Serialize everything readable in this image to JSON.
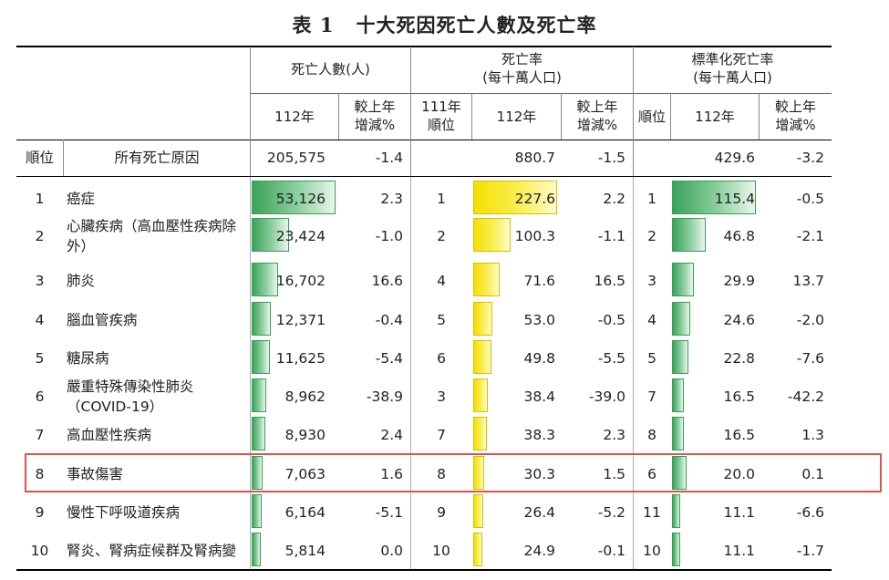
{
  "title": {
    "label": "表 1",
    "text": "十大死因死亡人數及死亡率"
  },
  "headers": {
    "deaths_group": "死亡人數(人)",
    "rate_group_line1": "死亡率",
    "rate_group_line2": "(每十萬人口)",
    "std_group_line1": "標準化死亡率",
    "std_group_line2": "(每十萬人口)",
    "year": "112年",
    "change_line1": "較上年",
    "change_line2": "增減%",
    "prev_rank_line1": "111年",
    "prev_rank_line2": "順位",
    "rank": "順位"
  },
  "total_row": {
    "rank_label": "順位",
    "cause": "所有死亡原因",
    "deaths": "205,575",
    "deaths_change": "-1.4",
    "rate": "880.7",
    "rate_change": "-1.5",
    "std_rate": "429.6",
    "std_change": "-3.2"
  },
  "rows": [
    {
      "rank": "1",
      "cause": "癌症",
      "deaths": "53,126",
      "deaths_change": "2.3",
      "prev_rank": "1",
      "rate": "227.6",
      "rate_change": "2.2",
      "std_rank": "1",
      "std_rate": "115.4",
      "std_change": "-0.5",
      "deaths_value": 53126,
      "rate_value": 227.6,
      "std_value": 115.4
    },
    {
      "rank": "2",
      "cause": "心臟疾病（高血壓性疾病除外）",
      "deaths": "23,424",
      "deaths_change": "-1.0",
      "prev_rank": "2",
      "rate": "100.3",
      "rate_change": "-1.1",
      "std_rank": "2",
      "std_rate": "46.8",
      "std_change": "-2.1",
      "deaths_value": 23424,
      "rate_value": 100.3,
      "std_value": 46.8
    },
    {
      "rank": "3",
      "cause": "肺炎",
      "deaths": "16,702",
      "deaths_change": "16.6",
      "prev_rank": "4",
      "rate": "71.6",
      "rate_change": "16.5",
      "std_rank": "3",
      "std_rate": "29.9",
      "std_change": "13.7",
      "deaths_value": 16702,
      "rate_value": 71.6,
      "std_value": 29.9
    },
    {
      "rank": "4",
      "cause": "腦血管疾病",
      "deaths": "12,371",
      "deaths_change": "-0.4",
      "prev_rank": "5",
      "rate": "53.0",
      "rate_change": "-0.5",
      "std_rank": "4",
      "std_rate": "24.6",
      "std_change": "-2.0",
      "deaths_value": 12371,
      "rate_value": 53.0,
      "std_value": 24.6
    },
    {
      "rank": "5",
      "cause": "糖尿病",
      "deaths": "11,625",
      "deaths_change": "-5.4",
      "prev_rank": "6",
      "rate": "49.8",
      "rate_change": "-5.5",
      "std_rank": "5",
      "std_rate": "22.8",
      "std_change": "-7.6",
      "deaths_value": 11625,
      "rate_value": 49.8,
      "std_value": 22.8
    },
    {
      "rank": "6",
      "cause": "嚴重特殊傳染性肺炎（COVID-19）",
      "deaths": "8,962",
      "deaths_change": "-38.9",
      "prev_rank": "3",
      "rate": "38.4",
      "rate_change": "-39.0",
      "std_rank": "7",
      "std_rate": "16.5",
      "std_change": "-42.2",
      "deaths_value": 8962,
      "rate_value": 38.4,
      "std_value": 16.5
    },
    {
      "rank": "7",
      "cause": "高血壓性疾病",
      "deaths": "8,930",
      "deaths_change": "2.4",
      "prev_rank": "7",
      "rate": "38.3",
      "rate_change": "2.3",
      "std_rank": "8",
      "std_rate": "16.5",
      "std_change": "1.3",
      "deaths_value": 8930,
      "rate_value": 38.3,
      "std_value": 16.5
    },
    {
      "rank": "8",
      "cause": "事故傷害",
      "deaths": "7,063",
      "deaths_change": "1.6",
      "prev_rank": "8",
      "rate": "30.3",
      "rate_change": "1.5",
      "std_rank": "6",
      "std_rate": "20.0",
      "std_change": "0.1",
      "deaths_value": 7063,
      "rate_value": 30.3,
      "std_value": 20.0
    },
    {
      "rank": "9",
      "cause": "慢性下呼吸道疾病",
      "deaths": "6,164",
      "deaths_change": "-5.1",
      "prev_rank": "9",
      "rate": "26.4",
      "rate_change": "-5.2",
      "std_rank": "11",
      "std_rate": "11.1",
      "std_change": "-6.6",
      "deaths_value": 6164,
      "rate_value": 26.4,
      "std_value": 11.1
    },
    {
      "rank": "10",
      "cause": "腎炎、腎病症候群及腎病變",
      "deaths": "5,814",
      "deaths_change": "0.0",
      "prev_rank": "10",
      "rate": "24.9",
      "rate_change": "-0.1",
      "std_rank": "10",
      "std_rate": "11.1",
      "std_change": "-1.7",
      "deaths_value": 5814,
      "rate_value": 24.9,
      "std_value": 11.1
    }
  ],
  "highlighted_rank": "8",
  "colors": {
    "green_bar": "#3aa35a",
    "yellow_bar": "#f4e000",
    "highlight_border": "#d9534f"
  }
}
